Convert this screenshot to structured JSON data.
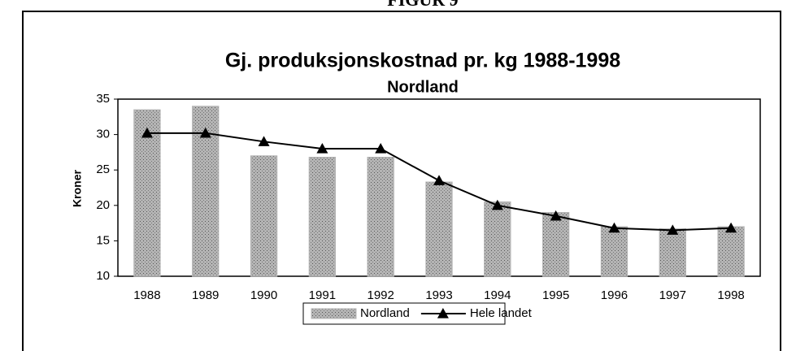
{
  "chart_data": {
    "type": "bar",
    "figure_label": "FIGUR 9",
    "title": "Gj. produksjonskostnad pr. kg 1988-1998",
    "subtitle": "Nordland",
    "y_label": "Kroner",
    "categories": [
      "1988",
      "1989",
      "1990",
      "1991",
      "1992",
      "1993",
      "1994",
      "1995",
      "1996",
      "1997",
      "1998"
    ],
    "series": [
      {
        "name": "Nordland",
        "type": "bar",
        "color": "#b4b4b4",
        "values": [
          33.5,
          34,
          27,
          26.8,
          26.8,
          23.3,
          20.5,
          19,
          17,
          16.7,
          17
        ]
      },
      {
        "name": "Hele landet",
        "type": "line",
        "color": "#000000",
        "values": [
          30.2,
          30.2,
          29,
          28,
          28,
          23.5,
          20,
          18.5,
          16.8,
          16.5,
          16.8
        ]
      }
    ],
    "ylim": [
      10,
      35
    ],
    "yticks": [
      10,
      15,
      20,
      25,
      30,
      35
    ],
    "grid": false,
    "legend": "bottom"
  }
}
